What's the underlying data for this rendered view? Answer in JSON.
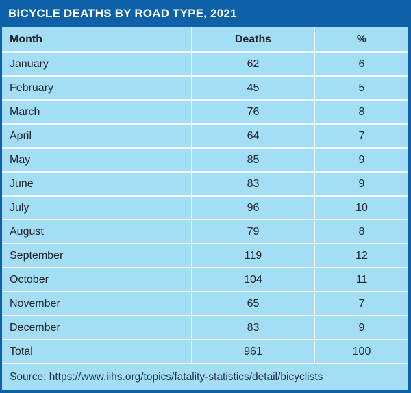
{
  "title": "BICYCLE DEATHS BY ROAD TYPE, 2021",
  "columns": [
    "Month",
    "Deaths",
    "%"
  ],
  "table": {
    "rows": [
      {
        "month": "January",
        "deaths": "62",
        "percent": "6"
      },
      {
        "month": "February",
        "deaths": "45",
        "percent": "5"
      },
      {
        "month": "March",
        "deaths": "76",
        "percent": "8"
      },
      {
        "month": "April",
        "deaths": "64",
        "percent": "7"
      },
      {
        "month": "May",
        "deaths": "85",
        "percent": "9"
      },
      {
        "month": "June",
        "deaths": "83",
        "percent": "9"
      },
      {
        "month": "July",
        "deaths": "96",
        "percent": "10"
      },
      {
        "month": "August",
        "deaths": "79",
        "percent": "8"
      },
      {
        "month": "September",
        "deaths": "119",
        "percent": "12"
      },
      {
        "month": "October",
        "deaths": "104",
        "percent": "11"
      },
      {
        "month": "November",
        "deaths": "65",
        "percent": "7"
      },
      {
        "month": "December",
        "deaths": "83",
        "percent": "9"
      },
      {
        "month": "Total",
        "deaths": "961",
        "percent": "100"
      }
    ]
  },
  "source": "Source: https://www.iihs.org/topics/fatality-statistics/detail/bicyclists",
  "colors": {
    "brand": "#0e61a9",
    "row_bg": "#a4ddf6",
    "separator": "#eef8fd",
    "title_text": "#ffffff",
    "text": "#1f2428",
    "source_text": "#1d3349"
  },
  "chart_data": {
    "type": "table",
    "title": "BICYCLE DEATHS BY ROAD TYPE, 2021",
    "columns": [
      "Month",
      "Deaths",
      "%"
    ],
    "categories": [
      "January",
      "February",
      "March",
      "April",
      "May",
      "June",
      "July",
      "August",
      "September",
      "October",
      "November",
      "December"
    ],
    "series": [
      {
        "name": "Deaths",
        "values": [
          62,
          45,
          76,
          64,
          85,
          83,
          96,
          79,
          119,
          104,
          65,
          83
        ]
      },
      {
        "name": "%",
        "values": [
          6,
          5,
          8,
          7,
          9,
          9,
          10,
          8,
          12,
          11,
          7,
          9
        ]
      }
    ],
    "totals": {
      "Deaths": 961,
      "%": 100
    },
    "source": "Source: https://www.iihs.org/topics/fatality-statistics/detail/bicyclists"
  }
}
